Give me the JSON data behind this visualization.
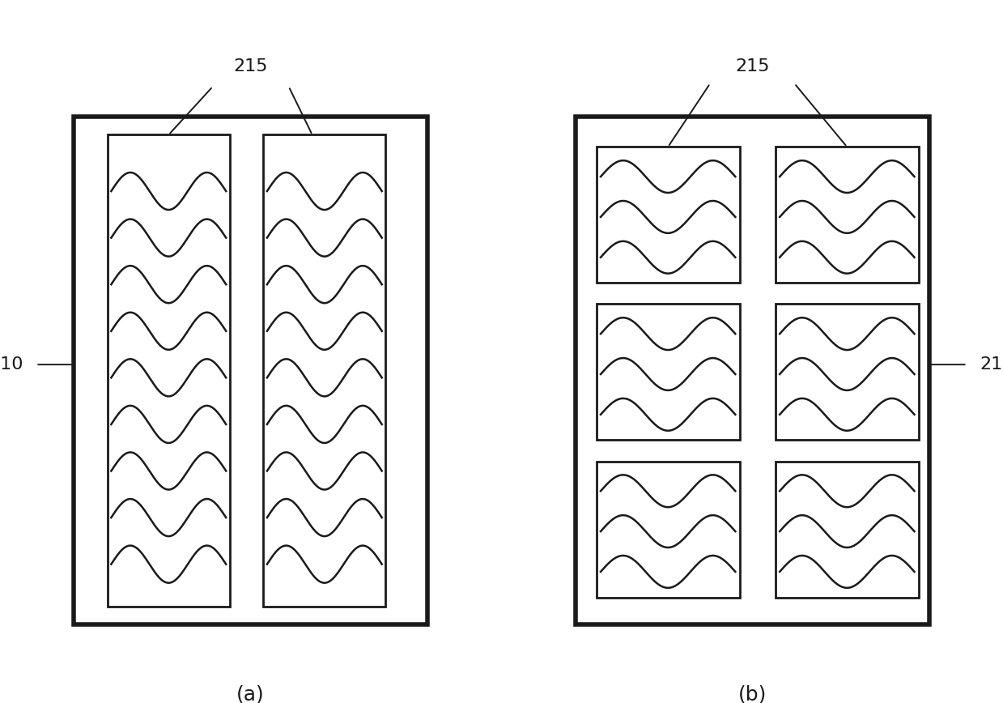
{
  "bg_color": "#ffffff",
  "line_color": "#1a1a1a",
  "outer_lw": 4.0,
  "inner_lw": 2.0,
  "wave_lw": 1.8,
  "fig_label_fontsize": 18,
  "annotation_fontsize": 16,
  "annotation_lw": 1.4,
  "wave_cycles": 1.5
}
